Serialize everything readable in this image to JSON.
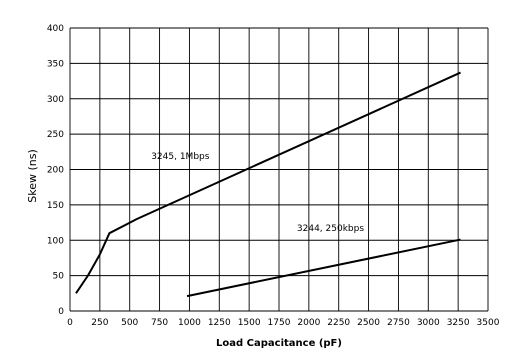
{
  "chart_data": {
    "type": "line",
    "title": "",
    "xlabel": "Load Capacitance (pF)",
    "ylabel": "Skew (ns)",
    "xlim": [
      0,
      3500
    ],
    "ylim": [
      0,
      400
    ],
    "xticks": [
      0,
      250,
      500,
      750,
      1000,
      1250,
      1500,
      1750,
      2000,
      2250,
      2500,
      2750,
      3000,
      3250,
      3500
    ],
    "yticks": [
      0,
      50,
      100,
      150,
      200,
      250,
      300,
      350,
      400
    ],
    "grid": true,
    "series": [
      {
        "name": "3245, 1Mbps",
        "x": [
          50,
          150,
          250,
          330,
          560,
          3270
        ],
        "y": [
          25,
          50,
          80,
          110,
          130,
          337
        ]
      },
      {
        "name": "3244, 250kbps",
        "x": [
          980,
          3270
        ],
        "y": [
          21,
          101
        ]
      }
    ]
  }
}
